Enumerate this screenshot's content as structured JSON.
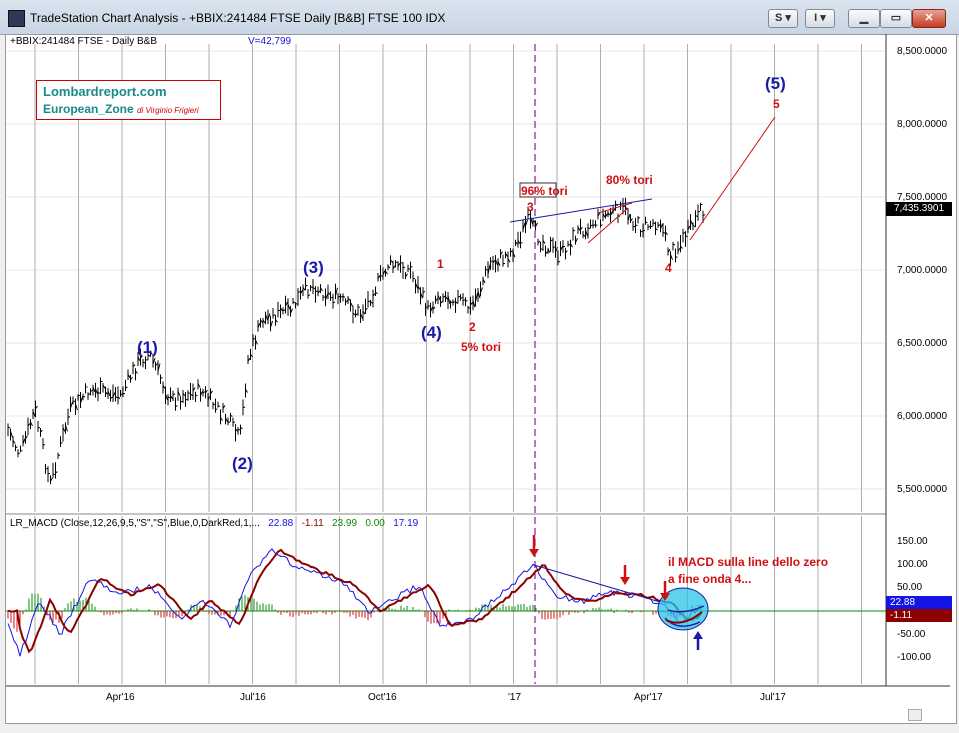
{
  "window": {
    "title": "TradeStation Chart Analysis - +BBIX:241484 FTSE Daily [B&B] FTSE 100 IDX",
    "buttons": {
      "s": "S",
      "i": "I"
    }
  },
  "chart": {
    "symbol_header": "+BBIX:241484 FTSE - Daily  B&B",
    "volume": "V=42,799",
    "last_price": "7,435.3901",
    "price_ticks": [
      "8,500.0000",
      "8,000.0000",
      "7,500.0000",
      "7,000.0000",
      "6,500.0000",
      "6,000.0000",
      "5,500.0000"
    ],
    "date_ticks": [
      "Apr'16",
      "Jul'16",
      "Oct'16",
      "'17",
      "Apr'17",
      "Jul'17"
    ],
    "logo": {
      "line1": "Lombardreport.com",
      "line2": "European_Zone",
      "author": "di Virginio Frigieri"
    }
  },
  "waves": {
    "w1": "(1)",
    "w2": "(2)",
    "w3": "(3)",
    "w4": "(4)",
    "w5": "(5)",
    "s1": "1",
    "s2": "2",
    "s3": "3",
    "s4": "4",
    "s5": "5"
  },
  "notes": {
    "tori5": "5% tori",
    "tori96": "96% tori",
    "tori80": "80% tori",
    "macd_note1": "il MACD sulla line dello zero",
    "macd_note2": "a fine onda 4..."
  },
  "macd": {
    "header": {
      "label": "LR_MACD (Close,12,26,9,5,\"S\",\"S\",Blue,0,DarkRed,1,...",
      "v1": "22.88",
      "v2": "-1.11",
      "v3": "23.99",
      "v4": "0.00",
      "v5": "17.19"
    },
    "ticks": [
      "150.00",
      "100.00",
      "50.00",
      "0.00",
      "-50.00",
      "-100.00"
    ],
    "macd_value": "22.88",
    "signal_value": "-1.11"
  },
  "colors": {
    "blue": "#1a1aa8",
    "red": "#d01010",
    "green": "#0a8a0a",
    "darkred": "#8b0000"
  }
}
